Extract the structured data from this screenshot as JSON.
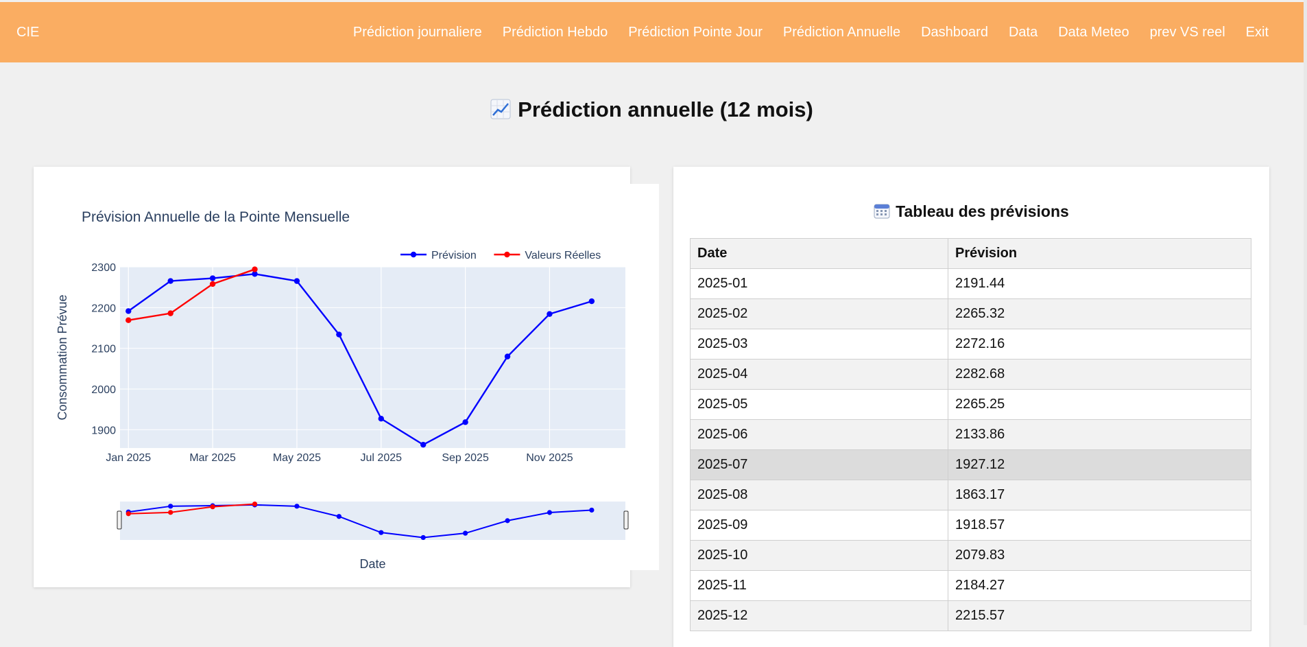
{
  "nav": {
    "brand": "CIE",
    "items": [
      {
        "label": "Prédiction journaliere"
      },
      {
        "label": "Prédiction Hebdo"
      },
      {
        "label": "Prédiction Pointe Jour"
      },
      {
        "label": "Prédiction Annuelle"
      },
      {
        "label": "Dashboard"
      },
      {
        "label": "Data"
      },
      {
        "label": "Data Meteo"
      },
      {
        "label": "prev VS reel"
      },
      {
        "label": "Exit"
      }
    ]
  },
  "page": {
    "title": "Prédiction annuelle (12 mois)",
    "title_icon": "chart-increasing-icon"
  },
  "table": {
    "title": "Tableau des prévisions",
    "title_icon": "calendar-icon",
    "headers": [
      "Date",
      "Prévision"
    ],
    "rows": [
      [
        "2025-01",
        "2191.44"
      ],
      [
        "2025-02",
        "2265.32"
      ],
      [
        "2025-03",
        "2272.16"
      ],
      [
        "2025-04",
        "2282.68"
      ],
      [
        "2025-05",
        "2265.25"
      ],
      [
        "2025-06",
        "2133.86"
      ],
      [
        "2025-07",
        "1927.12"
      ],
      [
        "2025-08",
        "1863.17"
      ],
      [
        "2025-09",
        "1918.57"
      ],
      [
        "2025-10",
        "2079.83"
      ],
      [
        "2025-11",
        "2184.27"
      ],
      [
        "2025-12",
        "2215.57"
      ]
    ]
  },
  "chart_data": {
    "type": "line",
    "title": "Prévision Annuelle de la Pointe Mensuelle",
    "xlabel": "Date",
    "ylabel": "Consommation Prévue",
    "x_tick_labels": [
      "Jan 2025",
      "Mar 2025",
      "May 2025",
      "Jul 2025",
      "Sep 2025",
      "Nov 2025"
    ],
    "y_ticks": [
      1900,
      2000,
      2100,
      2200,
      2300
    ],
    "ylim": [
      1855,
      2300
    ],
    "legend_position": "top-right",
    "grid": true,
    "range_slider": true,
    "series": [
      {
        "name": "Prévision",
        "color": "#0000ff",
        "x": [
          "2025-01",
          "2025-02",
          "2025-03",
          "2025-04",
          "2025-05",
          "2025-06",
          "2025-07",
          "2025-08",
          "2025-09",
          "2025-10",
          "2025-11",
          "2025-12"
        ],
        "values": [
          2191.44,
          2265.32,
          2272.16,
          2282.68,
          2265.25,
          2133.86,
          1927.12,
          1863.17,
          1918.57,
          2079.83,
          2184.27,
          2215.57
        ]
      },
      {
        "name": "Valeurs Réelles",
        "color": "#ff0000",
        "x": [
          "2025-01",
          "2025-02",
          "2025-03",
          "2025-04"
        ],
        "values": [
          2169,
          2186,
          2258,
          2294
        ]
      }
    ]
  }
}
